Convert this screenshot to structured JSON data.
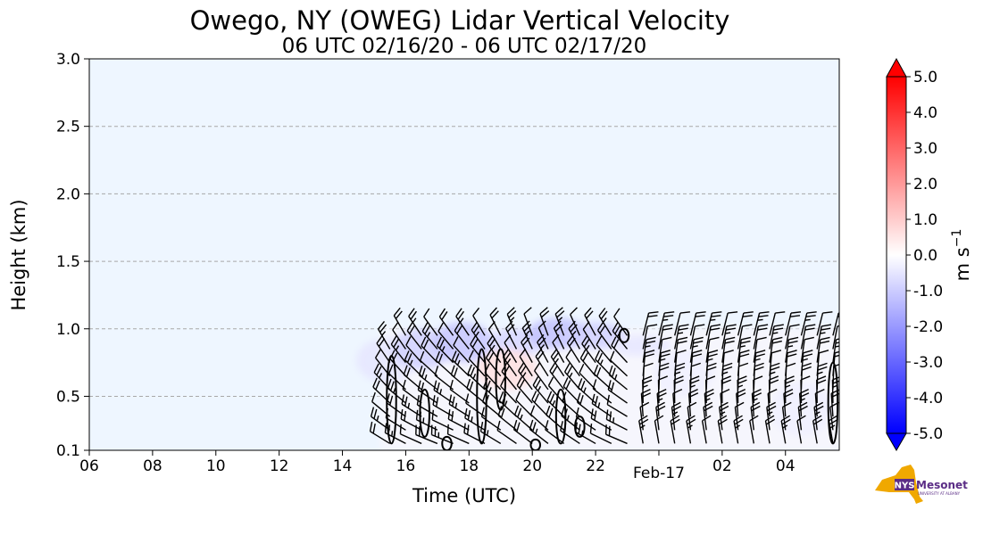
{
  "chart_data": {
    "type": "heatmap",
    "title": "Owego, NY (OWEG) Lidar Vertical Velocity",
    "subtitle": "06 UTC 02/16/20 - 06 UTC 02/17/20",
    "xlabel": "Time (UTC)",
    "ylabel": "Height (km)",
    "x_ticks": [
      {
        "hour": 6,
        "label": "06"
      },
      {
        "hour": 8,
        "label": "08"
      },
      {
        "hour": 10,
        "label": "10"
      },
      {
        "hour": 12,
        "label": "12"
      },
      {
        "hour": 14,
        "label": "14"
      },
      {
        "hour": 16,
        "label": "16"
      },
      {
        "hour": 18,
        "label": "18"
      },
      {
        "hour": 20,
        "label": "20"
      },
      {
        "hour": 22,
        "label": "22"
      },
      {
        "hour": 24,
        "label": "Feb-17"
      },
      {
        "hour": 26,
        "label": "02"
      },
      {
        "hour": 28,
        "label": "04"
      }
    ],
    "xlim_hours": [
      6,
      29.7
    ],
    "y_ticks": [
      0.1,
      0.5,
      1.0,
      1.5,
      2.0,
      2.5,
      3.0
    ],
    "y_tick_labels": [
      "0.1",
      "0.5",
      "1.0",
      "1.5",
      "2.0",
      "2.5",
      "3.0"
    ],
    "ylim": [
      0.1,
      3.0
    ],
    "grid": "horizontal dashed",
    "background_color": "#eef6ff",
    "colorbar": {
      "label_base": "m s",
      "label_exp": "−1",
      "range": [
        -5.0,
        5.0
      ],
      "ticks": [
        "5.0",
        "4.0",
        "3.0",
        "2.0",
        "1.0",
        "0.0",
        "-1.0",
        "-2.0",
        "-3.0",
        "-4.0",
        "-5.0"
      ],
      "tick_values": [
        5,
        4,
        3,
        2,
        1,
        0,
        -1,
        -2,
        -3,
        -4,
        -5
      ],
      "colormap": "bwr",
      "low_color": "#0000ff",
      "mid_color": "#ffffff",
      "high_color": "#ff0000"
    },
    "data_extent": {
      "start_hour": 14.6,
      "end_hour": 29.7,
      "max_height_km": 1.05
    },
    "velocity_patches": [
      {
        "hour": 15.4,
        "top_km": 0.93,
        "bottom_km": 0.6,
        "w": -0.5
      },
      {
        "hour": 16.5,
        "top_km": 1.0,
        "bottom_km": 0.7,
        "w": -0.9
      },
      {
        "hour": 17.8,
        "top_km": 1.05,
        "bottom_km": 0.75,
        "w": -1.1
      },
      {
        "hour": 19.5,
        "top_km": 1.0,
        "bottom_km": 0.8,
        "w": -0.8
      },
      {
        "hour": 20.8,
        "top_km": 1.08,
        "bottom_km": 0.85,
        "w": -1.2
      },
      {
        "hour": 22.0,
        "top_km": 1.05,
        "bottom_km": 0.85,
        "w": -0.9
      },
      {
        "hour": 23.4,
        "top_km": 0.95,
        "bottom_km": 0.8,
        "w": -0.5
      },
      {
        "hour": 19.2,
        "top_km": 0.85,
        "bottom_km": 0.55,
        "w": 0.6
      },
      {
        "hour": 24.8,
        "top_km": 0.85,
        "bottom_km": 0.5,
        "w": -0.3
      },
      {
        "hour": 28.5,
        "top_km": 0.6,
        "bottom_km": 0.2,
        "w": -0.3
      }
    ],
    "barb_field": {
      "start_hour": 15.5,
      "end_hour": 29.5,
      "dt_hours": 0.5,
      "heights_km": [
        0.15,
        0.25,
        0.35,
        0.45,
        0.55,
        0.65,
        0.75,
        0.85,
        0.95
      ],
      "direction_shift_hour": 23.5
    },
    "contours": [
      {
        "hour": 15.55,
        "bottom_km": 0.15,
        "top_km": 0.8
      },
      {
        "hour": 16.6,
        "bottom_km": 0.2,
        "top_km": 0.55
      },
      {
        "hour": 17.3,
        "bottom_km": 0.1,
        "top_km": 0.2
      },
      {
        "hour": 18.4,
        "bottom_km": 0.15,
        "top_km": 0.85
      },
      {
        "hour": 19.0,
        "bottom_km": 0.4,
        "top_km": 0.85
      },
      {
        "hour": 20.1,
        "bottom_km": 0.1,
        "top_km": 0.18
      },
      {
        "hour": 20.9,
        "bottom_km": 0.15,
        "top_km": 0.55
      },
      {
        "hour": 21.5,
        "bottom_km": 0.2,
        "top_km": 0.35
      },
      {
        "hour": 22.9,
        "bottom_km": 0.9,
        "top_km": 1.0
      },
      {
        "hour": 29.5,
        "bottom_km": 0.15,
        "top_km": 0.75
      }
    ],
    "logo_text": "NYS Mesonet",
    "logo_subtext": "UNIVERSITY AT ALBANY"
  }
}
